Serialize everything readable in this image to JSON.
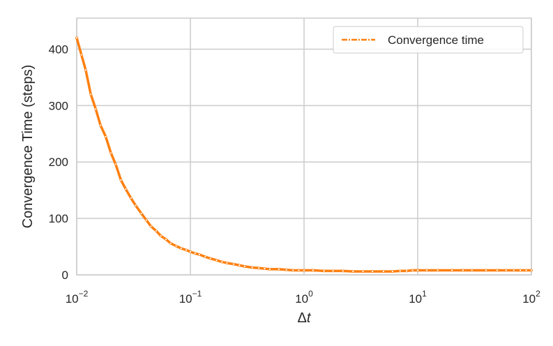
{
  "chart_data": {
    "type": "line",
    "title": "",
    "xlabel_base": "Δ",
    "xlabel_var": "t",
    "ylabel": "Convergence Time (steps)",
    "x_scale": "log",
    "xlim": [
      0.01,
      100
    ],
    "ylim": [
      0,
      455
    ],
    "grid": true,
    "legend_position": "top-right",
    "x_ticks": [
      {
        "base": "10",
        "exp": "−2",
        "value": 0.01
      },
      {
        "base": "10",
        "exp": "−1",
        "value": 0.1
      },
      {
        "base": "10",
        "exp": "0",
        "value": 1
      },
      {
        "base": "10",
        "exp": "1",
        "value": 10
      },
      {
        "base": "10",
        "exp": "2",
        "value": 100
      }
    ],
    "y_ticks": [
      {
        "label": "0",
        "value": 0
      },
      {
        "label": "100",
        "value": 100
      },
      {
        "label": "200",
        "value": 200
      },
      {
        "label": "300",
        "value": 300
      },
      {
        "label": "400",
        "value": 400
      }
    ],
    "series": [
      {
        "name": "Convergence time",
        "color": "#ff7f0e",
        "x": [
          0.01,
          0.011,
          0.012,
          0.0133,
          0.0147,
          0.0162,
          0.018,
          0.02,
          0.022,
          0.0245,
          0.027,
          0.03,
          0.033,
          0.037,
          0.041,
          0.045,
          0.05,
          0.055,
          0.061,
          0.067,
          0.075,
          0.083,
          0.092,
          0.1,
          0.11,
          0.12,
          0.135,
          0.15,
          0.17,
          0.19,
          0.21,
          0.24,
          0.27,
          0.3,
          0.35,
          0.4,
          0.45,
          0.5,
          0.6,
          0.7,
          0.8,
          0.9,
          1.0,
          1.2,
          1.5,
          1.8,
          2.2,
          2.7,
          3.3,
          4.0,
          5.0,
          6.0,
          7.0,
          8.0,
          9.0,
          10.0,
          12.0,
          15.0,
          20.0,
          25.0,
          30.0,
          40.0,
          50.0,
          60.0,
          70.0,
          80.0,
          90.0,
          100.0
        ],
        "values": [
          420,
          390,
          363,
          320,
          294,
          265,
          245,
          216,
          196,
          168,
          152,
          136,
          123,
          109,
          97,
          86,
          78,
          69,
          63,
          56,
          51,
          47,
          44,
          41,
          38,
          36,
          32,
          29,
          26,
          23,
          21,
          19,
          17,
          15,
          13,
          12,
          11,
          10,
          10,
          9,
          8,
          8,
          8,
          8,
          7,
          7,
          7,
          6,
          6,
          6,
          6,
          6,
          7,
          7,
          8,
          8,
          8,
          8,
          8,
          8,
          8,
          8,
          8,
          8,
          8,
          8,
          8,
          8
        ]
      }
    ]
  }
}
